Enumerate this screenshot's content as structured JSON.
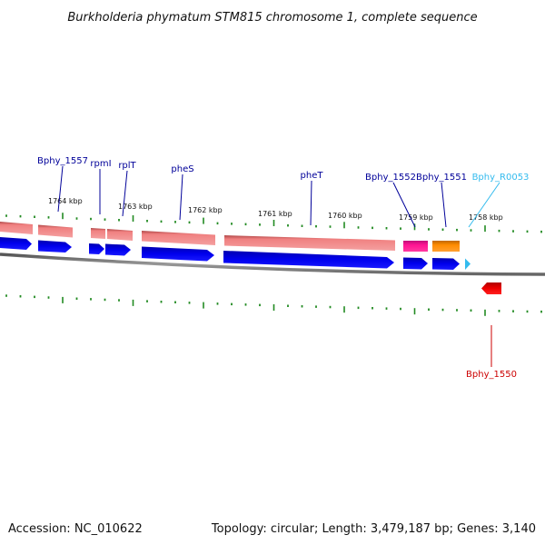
{
  "title": "Burkholderia phymatum STM815 chromosome 1, complete sequence",
  "footer": {
    "accession": "Accession: NC_010622",
    "summary": "Topology: circular; Length: 3,479,187 bp; Genes: 3,140"
  },
  "kbp_labels": [
    "1764 kbp",
    "1763 kbp",
    "1762 kbp",
    "1761 kbp",
    "1760 kbp",
    "1759 kbp",
    "1758 kbp"
  ],
  "gene_labels": [
    "Bphy_1557",
    "rpmI",
    "rplT",
    "pheS",
    "pheT",
    "Bphy_1552",
    "Bphy_1551",
    "Bphy_R0053",
    "Bphy_1550"
  ],
  "colors": {
    "cds": "#0000ee",
    "gene_upper": "#f08080",
    "gene_pink": "#ff1493",
    "gene_orange": "#ff8c00",
    "rna": "#33bbee",
    "reverse_cds": "#ee0000",
    "tick": "#228b22",
    "label_blue": "#000099",
    "label_cyan": "#33bbee",
    "label_red": "#cc0000"
  }
}
